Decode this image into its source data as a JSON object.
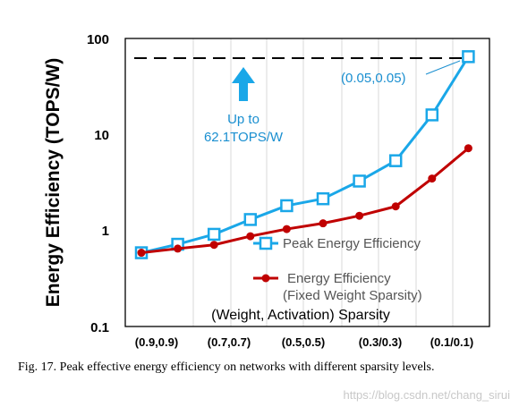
{
  "chart_data": {
    "type": "line",
    "yscale": "log",
    "ylim": [
      0.1,
      100
    ],
    "ylabel": "Energy Efficiency (TOPS/W)",
    "xlabel": "(Weight, Activation) Sparsity",
    "y_ticks": [
      "100",
      "10",
      "1",
      "0.1"
    ],
    "x_tick_labels": [
      "(0.9,0.9)",
      "(0.7,0.7)",
      "(0.5,0.5)",
      "(0.3/0.3)",
      "(0.1/0.1)"
    ],
    "x": [
      0.9,
      0.8,
      0.7,
      0.6,
      0.5,
      0.4,
      0.3,
      0.2,
      0.1,
      0.05
    ],
    "series": [
      {
        "name": "Peak Energy Efficiency",
        "color": "#1aa7e8",
        "marker": "square-open",
        "values": [
          0.58,
          0.71,
          0.9,
          1.28,
          1.78,
          2.1,
          3.2,
          5.2,
          15.5,
          62.1
        ]
      },
      {
        "name": "Energy Efficiency",
        "name_line2": "(Fixed Weight Sparsity)",
        "color": "#c00000",
        "marker": "circle-filled",
        "values": [
          0.58,
          0.64,
          0.7,
          0.86,
          1.02,
          1.17,
          1.4,
          1.75,
          3.4,
          7.0
        ]
      }
    ],
    "reference_line": {
      "value": 60,
      "style": "dashed",
      "color": "#000000"
    },
    "annotations": {
      "point_label": "(0.05,0.05)",
      "up_label_line1": "Up to",
      "up_label_line2": "62.1TOPS/W"
    },
    "legend_position": "bottom-right"
  },
  "caption": "Fig. 17.   Peak effective energy efficiency on networks with different sparsity levels.",
  "watermark": "https://blog.csdn.net/chang_sirui"
}
